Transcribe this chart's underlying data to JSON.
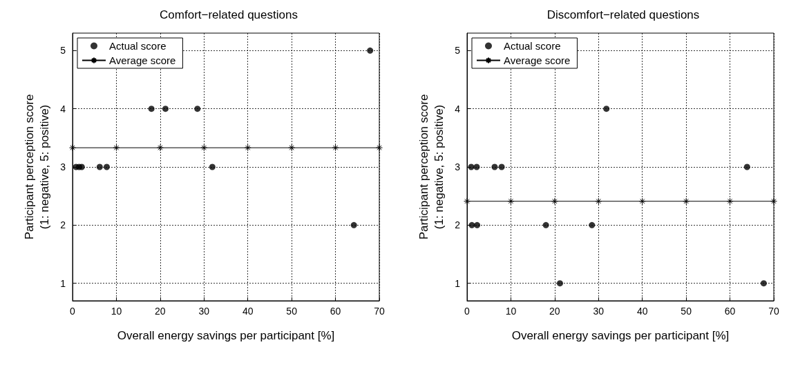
{
  "chart_data": [
    {
      "type": "scatter",
      "title": "Comfort−related questions",
      "xlabel": "Overall energy savings per participant [%]",
      "ylabel": "Participant perception score\n(1: negative, 5: positive)",
      "xlim": [
        0,
        70
      ],
      "xticks": [
        0,
        10,
        20,
        30,
        40,
        50,
        60,
        70
      ],
      "ylim": [
        0.7,
        5.3
      ],
      "yticks": [
        1,
        2,
        3,
        4,
        5
      ],
      "grid": true,
      "legend": "top left",
      "series": [
        {
          "name": "Actual score",
          "type": "scatter",
          "marker": "circle",
          "color": "#000000",
          "x": [
            0.8,
            1.5,
            2.1,
            6.2,
            7.8,
            31.9,
            18.0,
            21.2,
            28.5,
            67.9,
            64.2
          ],
          "values": [
            3,
            3,
            3,
            3,
            3,
            3,
            4,
            4,
            4,
            5,
            2
          ]
        },
        {
          "name": "Average score",
          "type": "line",
          "marker": "cross",
          "line_style": "solid",
          "color": "#000000",
          "x": [
            0,
            10,
            20,
            30,
            40,
            50,
            60,
            70
          ],
          "values": [
            3.33,
            3.33,
            3.33,
            3.33,
            3.33,
            3.33,
            3.33,
            3.33
          ]
        }
      ]
    },
    {
      "type": "scatter",
      "title": "Discomfort−related questions",
      "xlabel": "Overall energy savings per participant [%]",
      "ylabel": "Participant perception score\n(1: negative, 5: positive)",
      "xlim": [
        0,
        70
      ],
      "xticks": [
        0,
        10,
        20,
        30,
        40,
        50,
        60,
        70
      ],
      "ylim": [
        0.7,
        5.3
      ],
      "yticks": [
        1,
        2,
        3,
        4,
        5
      ],
      "grid": true,
      "legend": "top left",
      "series": [
        {
          "name": "Actual score",
          "type": "scatter",
          "marker": "circle",
          "color": "#000000",
          "x": [
            0.95,
            2.2,
            6.3,
            7.9,
            63.9,
            1.1,
            2.3,
            18.0,
            28.5,
            31.8,
            21.2,
            67.7
          ],
          "values": [
            3,
            3,
            3,
            3,
            3,
            2,
            2,
            2,
            2,
            4,
            1,
            1
          ]
        },
        {
          "name": "Average score",
          "type": "line",
          "marker": "cross",
          "line_style": "solid",
          "color": "#000000",
          "x": [
            0,
            10,
            20,
            30,
            40,
            50,
            60,
            70
          ],
          "values": [
            2.41,
            2.41,
            2.41,
            2.41,
            2.41,
            2.41,
            2.41,
            2.41
          ]
        }
      ]
    }
  ]
}
